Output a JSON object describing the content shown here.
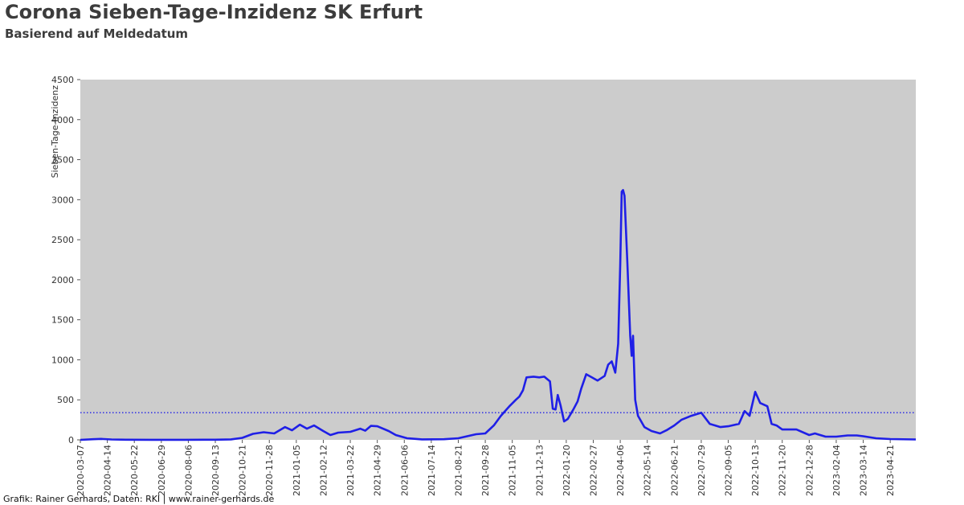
{
  "header": {
    "title": "Corona Sieben-Tage-Inzidenz SK Erfurt",
    "subtitle": "Basierend auf Meldedatum"
  },
  "footer": {
    "credit": "Grafik: Rainer Gerhards, Daten: RKI | www.rainer-gerhards.de"
  },
  "colors": {
    "plot_bg": "#cccccc",
    "line": "#1f1fe6",
    "reference_line": "#1f1fe6"
  },
  "chart_data": {
    "type": "line",
    "title": "Corona Sieben-Tage-Inzidenz SK Erfurt",
    "subtitle": "Basierend auf Meldedatum",
    "xlabel": "",
    "ylabel": "Sieben-Tage-Inzidenz",
    "ylim": [
      0,
      4500
    ],
    "yticks": [
      "0",
      "500",
      "1000",
      "1500",
      "2000",
      "2500",
      "3000",
      "3500",
      "4000",
      "4500"
    ],
    "xlim": [
      "2020-03-07",
      "2023-05-27"
    ],
    "xticks": [
      "2020-03-07",
      "2020-04-14",
      "2020-05-22",
      "2020-06-29",
      "2020-08-06",
      "2020-09-13",
      "2020-10-21",
      "2020-11-28",
      "2021-01-05",
      "2021-02-12",
      "2021-03-22",
      "2021-04-29",
      "2021-06-06",
      "2021-07-14",
      "2021-08-21",
      "2021-09-28",
      "2021-11-05",
      "2021-12-13",
      "2022-01-20",
      "2022-02-27",
      "2022-04-06",
      "2022-05-14",
      "2022-06-21",
      "2022-07-29",
      "2022-09-05",
      "2022-10-13",
      "2022-11-20",
      "2022-12-28",
      "2023-02-04",
      "2023-03-14",
      "2023-04-21"
    ],
    "grid": false,
    "reference_line": {
      "y": 340,
      "style": "dotted"
    },
    "series": [
      {
        "points": [
          [
            "2020-03-07",
            0
          ],
          [
            "2020-03-25",
            8
          ],
          [
            "2020-04-05",
            12
          ],
          [
            "2020-04-20",
            5
          ],
          [
            "2020-05-10",
            2
          ],
          [
            "2020-06-15",
            1
          ],
          [
            "2020-08-01",
            1
          ],
          [
            "2020-09-13",
            2
          ],
          [
            "2020-10-05",
            6
          ],
          [
            "2020-10-21",
            25
          ],
          [
            "2020-11-05",
            75
          ],
          [
            "2020-11-20",
            95
          ],
          [
            "2020-12-05",
            80
          ],
          [
            "2020-12-20",
            160
          ],
          [
            "2020-12-30",
            120
          ],
          [
            "2021-01-10",
            190
          ],
          [
            "2021-01-20",
            140
          ],
          [
            "2021-01-30",
            180
          ],
          [
            "2021-02-12",
            110
          ],
          [
            "2021-02-22",
            60
          ],
          [
            "2021-03-05",
            90
          ],
          [
            "2021-03-22",
            100
          ],
          [
            "2021-04-05",
            140
          ],
          [
            "2021-04-12",
            115
          ],
          [
            "2021-04-20",
            175
          ],
          [
            "2021-04-29",
            170
          ],
          [
            "2021-05-15",
            110
          ],
          [
            "2021-05-25",
            60
          ],
          [
            "2021-06-10",
            20
          ],
          [
            "2021-07-01",
            6
          ],
          [
            "2021-08-01",
            8
          ],
          [
            "2021-08-21",
            20
          ],
          [
            "2021-09-05",
            50
          ],
          [
            "2021-09-15",
            70
          ],
          [
            "2021-09-28",
            80
          ],
          [
            "2021-10-10",
            180
          ],
          [
            "2021-10-20",
            300
          ],
          [
            "2021-11-01",
            420
          ],
          [
            "2021-11-10",
            500
          ],
          [
            "2021-11-15",
            540
          ],
          [
            "2021-11-20",
            620
          ],
          [
            "2021-11-25",
            780
          ],
          [
            "2021-12-05",
            790
          ],
          [
            "2021-12-13",
            780
          ],
          [
            "2021-12-20",
            790
          ],
          [
            "2021-12-28",
            730
          ],
          [
            "2022-01-01",
            390
          ],
          [
            "2022-01-05",
            380
          ],
          [
            "2022-01-08",
            560
          ],
          [
            "2022-01-12",
            430
          ],
          [
            "2022-01-17",
            230
          ],
          [
            "2022-01-22",
            260
          ],
          [
            "2022-01-30",
            380
          ],
          [
            "2022-02-05",
            480
          ],
          [
            "2022-02-10",
            640
          ],
          [
            "2022-02-17",
            820
          ],
          [
            "2022-02-25",
            780
          ],
          [
            "2022-03-05",
            740
          ],
          [
            "2022-03-15",
            800
          ],
          [
            "2022-03-20",
            940
          ],
          [
            "2022-03-25",
            980
          ],
          [
            "2022-03-30",
            840
          ],
          [
            "2022-04-03",
            1200
          ],
          [
            "2022-04-06",
            2200
          ],
          [
            "2022-04-08",
            3100
          ],
          [
            "2022-04-10",
            3120
          ],
          [
            "2022-04-12",
            3050
          ],
          [
            "2022-04-16",
            2200
          ],
          [
            "2022-04-20",
            1300
          ],
          [
            "2022-04-22",
            1050
          ],
          [
            "2022-04-24",
            1300
          ],
          [
            "2022-04-27",
            500
          ],
          [
            "2022-05-01",
            300
          ],
          [
            "2022-05-10",
            160
          ],
          [
            "2022-05-20",
            110
          ],
          [
            "2022-06-01",
            80
          ],
          [
            "2022-06-10",
            120
          ],
          [
            "2022-06-21",
            180
          ],
          [
            "2022-07-01",
            250
          ],
          [
            "2022-07-15",
            300
          ],
          [
            "2022-07-29",
            340
          ],
          [
            "2022-08-10",
            200
          ],
          [
            "2022-08-25",
            160
          ],
          [
            "2022-09-05",
            170
          ],
          [
            "2022-09-20",
            200
          ],
          [
            "2022-09-28",
            360
          ],
          [
            "2022-10-05",
            300
          ],
          [
            "2022-10-13",
            600
          ],
          [
            "2022-10-20",
            460
          ],
          [
            "2022-10-30",
            420
          ],
          [
            "2022-11-05",
            200
          ],
          [
            "2022-11-12",
            180
          ],
          [
            "2022-11-20",
            130
          ],
          [
            "2022-12-10",
            130
          ],
          [
            "2022-12-28",
            60
          ],
          [
            "2023-01-05",
            80
          ],
          [
            "2023-01-20",
            40
          ],
          [
            "2023-02-04",
            40
          ],
          [
            "2023-02-20",
            55
          ],
          [
            "2023-03-05",
            55
          ],
          [
            "2023-03-14",
            45
          ],
          [
            "2023-04-01",
            20
          ],
          [
            "2023-04-21",
            10
          ],
          [
            "2023-05-27",
            5
          ]
        ]
      }
    ]
  }
}
